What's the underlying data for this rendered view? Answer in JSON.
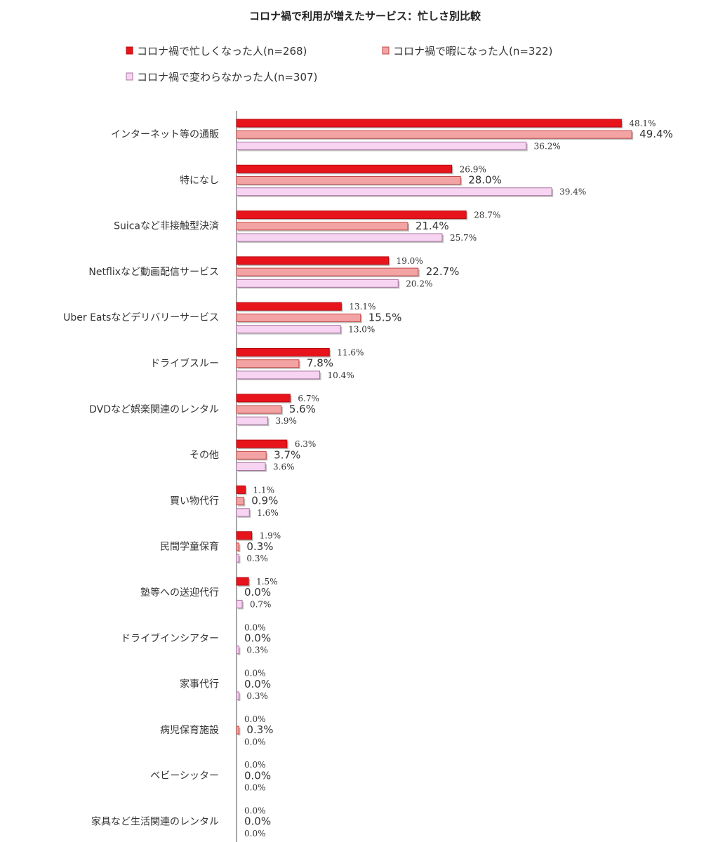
{
  "chart_data": {
    "type": "bar",
    "orientation": "horizontal",
    "title": "コロナ禍で利用が増えたサービス：忙しさ別比較",
    "xlim": [
      0,
      55
    ],
    "grid": false,
    "legend_position": "top",
    "categories": [
      "インターネット等の通販",
      "特になし",
      "Suicaなど非接触型決済",
      "Netflixなど動画配信サービス",
      "Uber Eatsなどデリバリーサービス",
      "ドライブスルー",
      "DVDなど娯楽関連のレンタル",
      "その他",
      "買い物代行",
      "民間学童保育",
      "塾等への送迎代行",
      "ドライブインシアター",
      "家事代行",
      "病児保育施設",
      "ベビーシッター",
      "家具など生活関連のレンタル"
    ],
    "series": [
      {
        "name": "コロナ禍で忙しくなった人(n=268)",
        "color": "#e8141c",
        "border": "#b80a10",
        "values": [
          48.1,
          26.9,
          28.7,
          19.0,
          13.1,
          11.6,
          6.7,
          6.3,
          1.1,
          1.9,
          1.5,
          0.0,
          0.0,
          0.0,
          0.0,
          0.0
        ],
        "labels": [
          "48.1%",
          "26.9%",
          "28.7%",
          "19.0%",
          "13.1%",
          "11.6%",
          "6.7%",
          "6.3%",
          "1.1%",
          "1.9%",
          "1.5%",
          "0.0%",
          "0.0%",
          "0.0%",
          "0.0%",
          "0.0%"
        ]
      },
      {
        "name": "コロナ禍で暇になった人(n=322)",
        "color": "#f3a3a3",
        "border": "#c44a4a",
        "values": [
          49.4,
          28.0,
          21.4,
          22.7,
          15.5,
          7.8,
          5.6,
          3.7,
          0.9,
          0.3,
          0.0,
          0.0,
          0.0,
          0.3,
          0.0,
          0.0
        ],
        "labels": [
          "49.4%",
          "28.0%",
          "21.4%",
          "22.7%",
          "15.5%",
          "7.8%",
          "5.6%",
          "3.7%",
          "0.9%",
          "0.3%",
          "0.0%",
          "0.0%",
          "0.0%",
          "0.3%",
          "0.0%",
          "0.0%"
        ]
      },
      {
        "name": "コロナ禍で変わらなかった人(n=307)",
        "color": "#f7d4f2",
        "border": "#a8739e",
        "values": [
          36.2,
          39.4,
          25.7,
          20.2,
          13.0,
          10.4,
          3.9,
          3.6,
          1.6,
          0.3,
          0.7,
          0.3,
          0.3,
          0.0,
          0.0,
          0.0
        ],
        "labels": [
          "36.2%",
          "39.4%",
          "25.7%",
          "20.2%",
          "13.0%",
          "10.4%",
          "3.9%",
          "3.6%",
          "1.6%",
          "0.3%",
          "0.7%",
          "0.3%",
          "0.3%",
          "0.0%",
          "0.0%",
          "0.0%"
        ]
      }
    ]
  }
}
